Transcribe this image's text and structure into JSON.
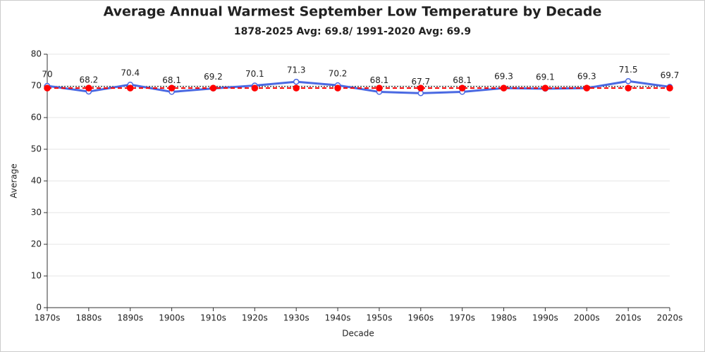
{
  "chart_data": {
    "type": "line",
    "title": "Average Annual Warmest September Low Temperature by Decade",
    "subtitle": "1878-2025 Avg: 69.8/ 1991-2020 Avg: 69.9",
    "x_label": "Decade",
    "y_label": "Average",
    "categories": [
      "1870s",
      "1880s",
      "1890s",
      "1900s",
      "1910s",
      "1920s",
      "1930s",
      "1940s",
      "1950s",
      "1960s",
      "1970s",
      "1980s",
      "1990s",
      "2000s",
      "2010s",
      "2020s"
    ],
    "series": [
      {
        "color": "#4a69e2",
        "values": [
          70,
          68.2,
          70.4,
          68.1,
          69.2,
          70.1,
          71.3,
          70.2,
          68.1,
          67.7,
          68.1,
          69.3,
          69.1,
          69.3,
          71.5,
          69.7
        ],
        "data_labels": true
      },
      {
        "color": "#ff0000",
        "dashed": true,
        "values": [
          69.3,
          69.3,
          69.3,
          69.3,
          69.3,
          69.3,
          69.3,
          69.3,
          69.3,
          69.3,
          69.3,
          69.3,
          69.3,
          69.3,
          69.3,
          69.3
        ],
        "data_labels": false
      }
    ],
    "reference_line": {
      "value": 69.8,
      "color": "#000000"
    },
    "ylim": [
      0,
      80
    ],
    "yticks": [
      0,
      10,
      20,
      30,
      40,
      50,
      60,
      70,
      80
    ],
    "grid": true
  }
}
